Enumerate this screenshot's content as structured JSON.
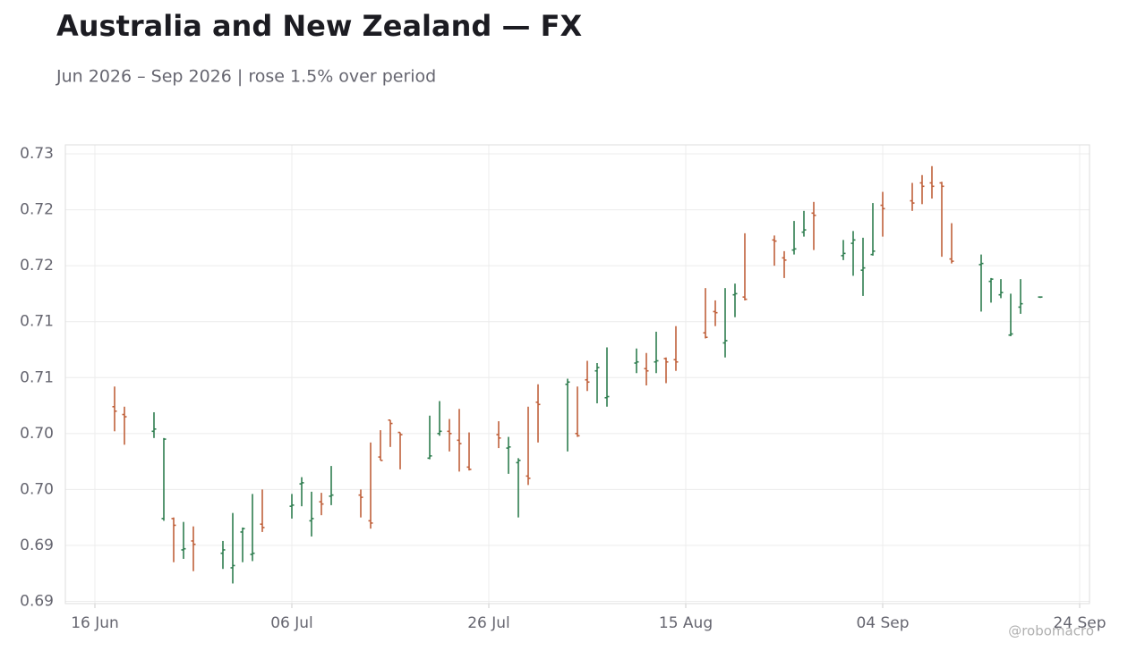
{
  "chart_data": {
    "type": "ohlc",
    "title": "Australia and New Zealand — FX",
    "subtitle": "Jun 2026 – Sep 2026 | rose 1.5% over period",
    "watermark": "@robomacro",
    "up_color": "#2e7d4f",
    "down_color": "#c0603a",
    "grid": true,
    "xlim": [
      "2026-06-13",
      "2026-09-25"
    ],
    "xticks": [
      {
        "value": "2026-06-16",
        "label": "16 Jun"
      },
      {
        "value": "2026-07-06",
        "label": "06 Jul"
      },
      {
        "value": "2026-07-26",
        "label": "26 Jul"
      },
      {
        "value": "2026-08-15",
        "label": "15 Aug"
      },
      {
        "value": "2026-09-04",
        "label": "04 Sep"
      },
      {
        "value": "2026-09-24",
        "label": "24 Sep"
      }
    ],
    "ylim": [
      0.6898,
      0.7308
    ],
    "yticks": [
      0.73,
      {
        "value": 0.725,
        "label": "0.72"
      },
      0.72,
      {
        "value": 0.715,
        "label": "0.71"
      },
      0.71,
      {
        "value": 0.705,
        "label": "0.70"
      },
      {
        "value": 0.7,
        "label": "0.70"
      },
      {
        "value": 0.695,
        "label": "0.69"
      },
      0.69
    ],
    "x": [
      "2026-06-18",
      "2026-06-19",
      "2026-06-22",
      "2026-06-23",
      "2026-06-24",
      "2026-06-25",
      "2026-06-26",
      "2026-06-29",
      "2026-06-30",
      "2026-07-01",
      "2026-07-02",
      "2026-07-03",
      "2026-07-06",
      "2026-07-07",
      "2026-07-08",
      "2026-07-09",
      "2026-07-10",
      "2026-07-13",
      "2026-07-14",
      "2026-07-15",
      "2026-07-16",
      "2026-07-17",
      "2026-07-20",
      "2026-07-21",
      "2026-07-22",
      "2026-07-23",
      "2026-07-24",
      "2026-07-27",
      "2026-07-28",
      "2026-07-29",
      "2026-07-30",
      "2026-07-31",
      "2026-08-03",
      "2026-08-04",
      "2026-08-05",
      "2026-08-06",
      "2026-08-07",
      "2026-08-10",
      "2026-08-11",
      "2026-08-12",
      "2026-08-13",
      "2026-08-14",
      "2026-08-17",
      "2026-08-18",
      "2026-08-19",
      "2026-08-20",
      "2026-08-21",
      "2026-08-24",
      "2026-08-25",
      "2026-08-26",
      "2026-08-27",
      "2026-08-28",
      "2026-08-31",
      "2026-09-01",
      "2026-09-02",
      "2026-09-03",
      "2026-09-04",
      "2026-09-07",
      "2026-09-08",
      "2026-09-09",
      "2026-09-10",
      "2026-09-11",
      "2026-09-14",
      "2026-09-15",
      "2026-09-16",
      "2026-09-17",
      "2026-09-18",
      "2026-09-20"
    ],
    "open": [
      0.7074,
      0.7067,
      0.7052,
      0.6974,
      0.6974,
      0.6946,
      0.6954,
      0.6943,
      0.693,
      0.6962,
      0.6942,
      0.6969,
      0.6985,
      0.7005,
      0.6972,
      0.6989,
      0.6994,
      0.6995,
      0.6972,
      0.7029,
      0.7062,
      0.7051,
      0.7028,
      0.705,
      0.7052,
      0.7044,
      0.702,
      0.7049,
      0.7037,
      0.7024,
      0.7012,
      0.7078,
      0.7094,
      0.705,
      0.7098,
      0.7106,
      0.7082,
      0.7113,
      0.7108,
      0.7114,
      0.7117,
      0.7116,
      0.714,
      0.7159,
      0.7131,
      0.7174,
      0.7172,
      0.7223,
      0.7207,
      0.7214,
      0.723,
      0.7247,
      0.7209,
      0.722,
      0.7196,
      0.721,
      0.7254,
      0.7258,
      0.7274,
      0.7274,
      0.7274,
      0.7206,
      0.7201,
      0.7186,
      0.7174,
      0.7138,
      0.7163,
      0.7172
    ],
    "high": [
      0.7092,
      0.7074,
      0.7069,
      0.7046,
      0.6975,
      0.6971,
      0.6967,
      0.6954,
      0.6979,
      0.6966,
      0.6996,
      0.7,
      0.6996,
      0.7011,
      0.6998,
      0.6997,
      0.7021,
      0.7,
      0.7042,
      0.7053,
      0.7062,
      0.7051,
      0.7066,
      0.7079,
      0.7063,
      0.7072,
      0.7051,
      0.7061,
      0.7047,
      0.7028,
      0.7074,
      0.7094,
      0.7099,
      0.7092,
      0.7115,
      0.7113,
      0.7127,
      0.7126,
      0.7122,
      0.7141,
      0.7118,
      0.7146,
      0.718,
      0.7169,
      0.718,
      0.7184,
      0.7229,
      0.7227,
      0.7213,
      0.724,
      0.7249,
      0.7257,
      0.7223,
      0.7231,
      0.7225,
      0.7256,
      0.7266,
      0.7274,
      0.7281,
      0.7289,
      0.7275,
      0.7238,
      0.721,
      0.7189,
      0.7188,
      0.7175,
      0.7188,
      0.7172
    ],
    "low": [
      0.7052,
      0.704,
      0.7046,
      0.6972,
      0.6935,
      0.6938,
      0.6927,
      0.6929,
      0.6916,
      0.6935,
      0.6936,
      0.6962,
      0.6974,
      0.6985,
      0.6958,
      0.6977,
      0.6986,
      0.6975,
      0.6965,
      0.7026,
      0.7038,
      0.7018,
      0.7027,
      0.7048,
      0.7034,
      0.7016,
      0.7017,
      0.7037,
      0.7014,
      0.6975,
      0.7004,
      0.7042,
      0.7034,
      0.7047,
      0.7088,
      0.7077,
      0.7074,
      0.7104,
      0.7093,
      0.7104,
      0.7095,
      0.7106,
      0.7135,
      0.7146,
      0.7118,
      0.7154,
      0.7169,
      0.72,
      0.7189,
      0.721,
      0.7226,
      0.7214,
      0.7205,
      0.7191,
      0.7173,
      0.7209,
      0.7226,
      0.7249,
      0.7255,
      0.726,
      0.7208,
      0.7202,
      0.7159,
      0.7167,
      0.7171,
      0.7137,
      0.7157,
      0.7172
    ],
    "close": [
      0.707,
      0.7065,
      0.7054,
      0.7045,
      0.6968,
      0.6947,
      0.6951,
      0.6946,
      0.6932,
      0.6965,
      0.6943,
      0.6966,
      0.6986,
      0.7006,
      0.6974,
      0.6987,
      0.6995,
      0.6993,
      0.697,
      0.7026,
      0.7059,
      0.7049,
      0.703,
      0.7052,
      0.705,
      0.7041,
      0.7018,
      0.7046,
      0.7038,
      0.7026,
      0.701,
      0.7076,
      0.7096,
      0.7048,
      0.7096,
      0.7109,
      0.7083,
      0.7114,
      0.7106,
      0.7115,
      0.7114,
      0.7114,
      0.7136,
      0.7158,
      0.7133,
      0.7175,
      0.717,
      0.7222,
      0.7205,
      0.7215,
      0.7232,
      0.7245,
      0.7211,
      0.7223,
      0.7198,
      0.7213,
      0.7251,
      0.7256,
      0.7271,
      0.7271,
      0.7271,
      0.7204,
      0.7202,
      0.7188,
      0.7176,
      0.7139,
      0.7166,
      0.7172
    ]
  }
}
